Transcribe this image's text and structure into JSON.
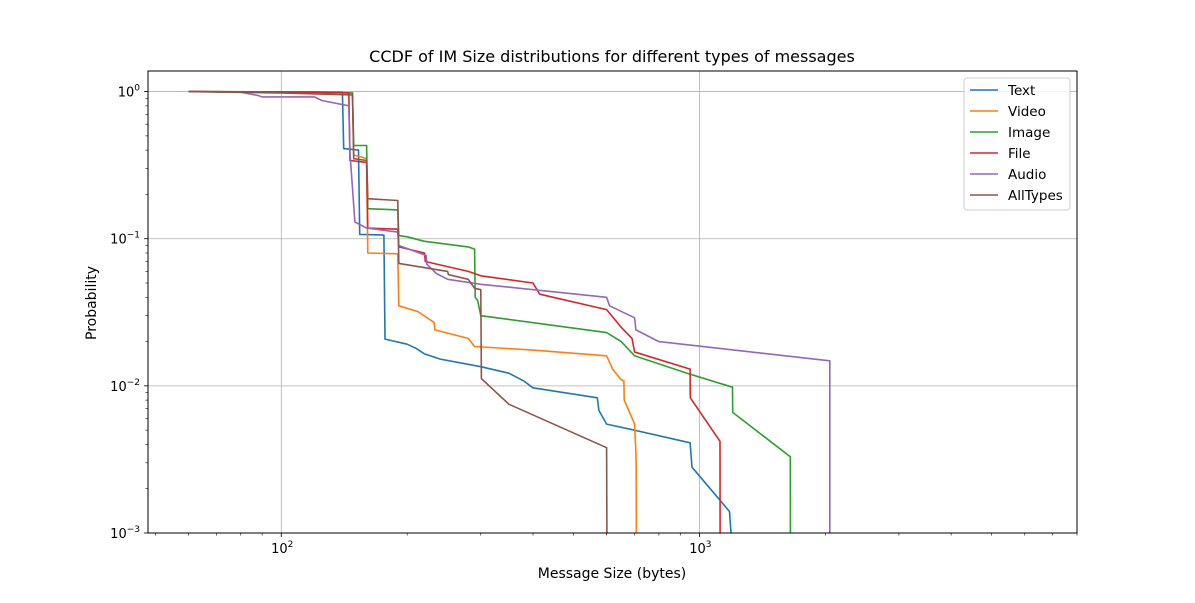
{
  "chart_data": {
    "type": "line",
    "title": "CCDF of IM Size distributions for different types of messages",
    "xlabel": "Message Size (bytes)",
    "ylabel": "Probability",
    "xscale": "log",
    "yscale": "log",
    "xlim": [
      48,
      8000
    ],
    "ylim": [
      0.001,
      1.38
    ],
    "grid": true,
    "legend_position": "top-right",
    "x_major_ticks": [
      {
        "value": 100,
        "base": "10",
        "exp": "2"
      },
      {
        "value": 1000,
        "base": "10",
        "exp": "3"
      }
    ],
    "x_minor_ticks": [
      50,
      60,
      70,
      80,
      90,
      200,
      300,
      400,
      500,
      600,
      700,
      800,
      900,
      2000,
      3000,
      4000,
      5000,
      6000,
      7000,
      8000
    ],
    "y_major_ticks": [
      {
        "value": 1,
        "base": "10",
        "exp": "0"
      },
      {
        "value": 0.1,
        "base": "10",
        "exp": "−1"
      },
      {
        "value": 0.01,
        "base": "10",
        "exp": "−2"
      },
      {
        "value": 0.001,
        "base": "10",
        "exp": "−3"
      }
    ],
    "series": [
      {
        "name": "Text",
        "color": "#1f77b4",
        "points": [
          [
            60,
            1
          ],
          [
            120,
            0.995
          ],
          [
            140,
            0.99
          ],
          [
            141,
            0.41
          ],
          [
            153,
            0.4
          ],
          [
            154,
            0.107
          ],
          [
            176,
            0.106
          ],
          [
            177,
            0.0208
          ],
          [
            200,
            0.0192
          ],
          [
            210,
            0.018
          ],
          [
            220,
            0.0165
          ],
          [
            240,
            0.0152
          ],
          [
            300,
            0.0135
          ],
          [
            350,
            0.0122
          ],
          [
            380,
            0.0108
          ],
          [
            400,
            0.0097
          ],
          [
            570,
            0.0083
          ],
          [
            575,
            0.0068
          ],
          [
            600,
            0.0055
          ],
          [
            700,
            0.005
          ],
          [
            950,
            0.0041
          ],
          [
            960,
            0.0028
          ],
          [
            1180,
            0.0014
          ],
          [
            1190,
            0.001
          ]
        ]
      },
      {
        "name": "Video",
        "color": "#ff7f0e",
        "points": [
          [
            60,
            1
          ],
          [
            120,
            0.99
          ],
          [
            148,
            0.98
          ],
          [
            149,
            0.37
          ],
          [
            155,
            0.36
          ],
          [
            160,
            0.35
          ],
          [
            161,
            0.08
          ],
          [
            190,
            0.079
          ],
          [
            191,
            0.035
          ],
          [
            212,
            0.032
          ],
          [
            232,
            0.027
          ],
          [
            233,
            0.024
          ],
          [
            280,
            0.021
          ],
          [
            290,
            0.0185
          ],
          [
            400,
            0.0175
          ],
          [
            600,
            0.016
          ],
          [
            620,
            0.013
          ],
          [
            650,
            0.011
          ],
          [
            660,
            0.0108
          ],
          [
            661,
            0.008
          ],
          [
            700,
            0.0055
          ],
          [
            705,
            0.0035
          ],
          [
            706,
            0.0027
          ],
          [
            707,
            0.001
          ]
        ]
      },
      {
        "name": "Image",
        "color": "#2ca02c",
        "points": [
          [
            60,
            1
          ],
          [
            110,
            0.99
          ],
          [
            148,
            0.98
          ],
          [
            149,
            0.43
          ],
          [
            160,
            0.43
          ],
          [
            161,
            0.16
          ],
          [
            190,
            0.157
          ],
          [
            191,
            0.105
          ],
          [
            200,
            0.103
          ],
          [
            220,
            0.096
          ],
          [
            280,
            0.088
          ],
          [
            290,
            0.085
          ],
          [
            291,
            0.04
          ],
          [
            295,
            0.038
          ],
          [
            300,
            0.03
          ],
          [
            600,
            0.023
          ],
          [
            650,
            0.02
          ],
          [
            700,
            0.016
          ],
          [
            950,
            0.012
          ],
          [
            1200,
            0.0098
          ],
          [
            1201,
            0.0066
          ],
          [
            1650,
            0.0033
          ],
          [
            1651,
            0.001
          ]
        ]
      },
      {
        "name": "File",
        "color": "#d62728",
        "points": [
          [
            60,
            1
          ],
          [
            120,
            0.99
          ],
          [
            145,
            0.98
          ],
          [
            146,
            0.34
          ],
          [
            160,
            0.33
          ],
          [
            161,
            0.118
          ],
          [
            190,
            0.116
          ],
          [
            191,
            0.088
          ],
          [
            220,
            0.08
          ],
          [
            221,
            0.07
          ],
          [
            280,
            0.06
          ],
          [
            300,
            0.056
          ],
          [
            400,
            0.05
          ],
          [
            415,
            0.042
          ],
          [
            600,
            0.033
          ],
          [
            650,
            0.025
          ],
          [
            690,
            0.021
          ],
          [
            700,
            0.017
          ],
          [
            950,
            0.013
          ],
          [
            951,
            0.0083
          ],
          [
            1120,
            0.0042
          ],
          [
            1121,
            0.001
          ]
        ]
      },
      {
        "name": "Audio",
        "color": "#9467bd",
        "points": [
          [
            60,
            1
          ],
          [
            80,
            0.99
          ],
          [
            88,
            0.94
          ],
          [
            90,
            0.92
          ],
          [
            120,
            0.92
          ],
          [
            125,
            0.87
          ],
          [
            145,
            0.8
          ],
          [
            146,
            0.38
          ],
          [
            150,
            0.13
          ],
          [
            160,
            0.118
          ],
          [
            190,
            0.111
          ],
          [
            191,
            0.09
          ],
          [
            222,
            0.077
          ],
          [
            223,
            0.067
          ],
          [
            235,
            0.058
          ],
          [
            250,
            0.053
          ],
          [
            300,
            0.049
          ],
          [
            600,
            0.04
          ],
          [
            610,
            0.035
          ],
          [
            700,
            0.029
          ],
          [
            705,
            0.024
          ],
          [
            800,
            0.02
          ],
          [
            2050,
            0.0148
          ],
          [
            2051,
            0.001
          ]
        ]
      },
      {
        "name": "AllTypes",
        "color": "#8c564b",
        "points": [
          [
            60,
            1
          ],
          [
            100,
            0.98
          ],
          [
            148,
            0.95
          ],
          [
            149,
            0.35
          ],
          [
            160,
            0.34
          ],
          [
            161,
            0.187
          ],
          [
            190,
            0.182
          ],
          [
            191,
            0.068
          ],
          [
            250,
            0.06
          ],
          [
            251,
            0.057
          ],
          [
            280,
            0.053
          ],
          [
            290,
            0.046
          ],
          [
            300,
            0.045
          ],
          [
            301,
            0.0112
          ],
          [
            350,
            0.0075
          ],
          [
            600,
            0.0038
          ],
          [
            601,
            0.001
          ]
        ]
      }
    ]
  }
}
